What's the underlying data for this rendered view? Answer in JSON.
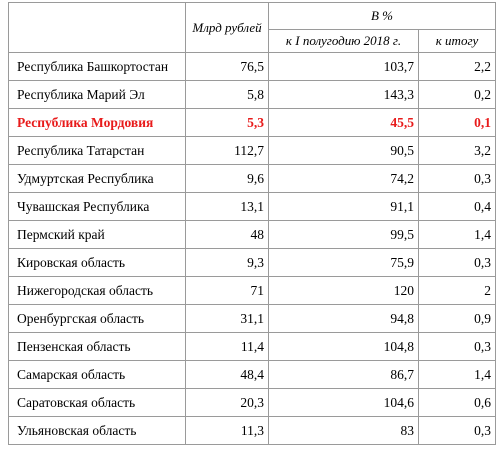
{
  "header": {
    "mlrd_label": "Млрд рублей",
    "percent_group": "В %",
    "col_half_year": "к I полугодию 2018 г.",
    "col_total": "к итогу"
  },
  "rows": [
    {
      "region": "Республика Башкортостан",
      "value": "76,5",
      "pct_half": "103,7",
      "pct_total": "2,2"
    },
    {
      "region": "Республика Марий Эл",
      "value": "5,8",
      "pct_half": "143,3",
      "pct_total": "0,2"
    },
    {
      "region": "Республика Мордовия",
      "value": "5,3",
      "pct_half": "45,5",
      "pct_total": "0,1"
    },
    {
      "region": "Республика Татарстан",
      "value": "112,7",
      "pct_half": "90,5",
      "pct_total": "3,2"
    },
    {
      "region": "Удмуртская Республика",
      "value": "9,6",
      "pct_half": "74,2",
      "pct_total": "0,3"
    },
    {
      "region": "Чувашская Республика",
      "value": "13,1",
      "pct_half": "91,1",
      "pct_total": "0,4"
    },
    {
      "region": "Пермский край",
      "value": "48",
      "pct_half": "99,5",
      "pct_total": "1,4"
    },
    {
      "region": "Кировская область",
      "value": "9,3",
      "pct_half": "75,9",
      "pct_total": "0,3"
    },
    {
      "region": "Нижегородская область",
      "value": "71",
      "pct_half": "120",
      "pct_total": "2"
    },
    {
      "region": "Оренбургская область",
      "value": "31,1",
      "pct_half": "94,8",
      "pct_total": "0,9"
    },
    {
      "region": "Пензенская область",
      "value": "11,4",
      "pct_half": "104,8",
      "pct_total": "0,3"
    },
    {
      "region": "Самарская область",
      "value": "48,4",
      "pct_half": "86,7",
      "pct_total": "1,4"
    },
    {
      "region": "Саратовская область",
      "value": "20,3",
      "pct_half": "104,6",
      "pct_total": "0,6"
    },
    {
      "region": "Ульяновская область",
      "value": "11,3",
      "pct_half": "83",
      "pct_total": "0,3"
    }
  ],
  "highlight_color": "#e81b1b"
}
